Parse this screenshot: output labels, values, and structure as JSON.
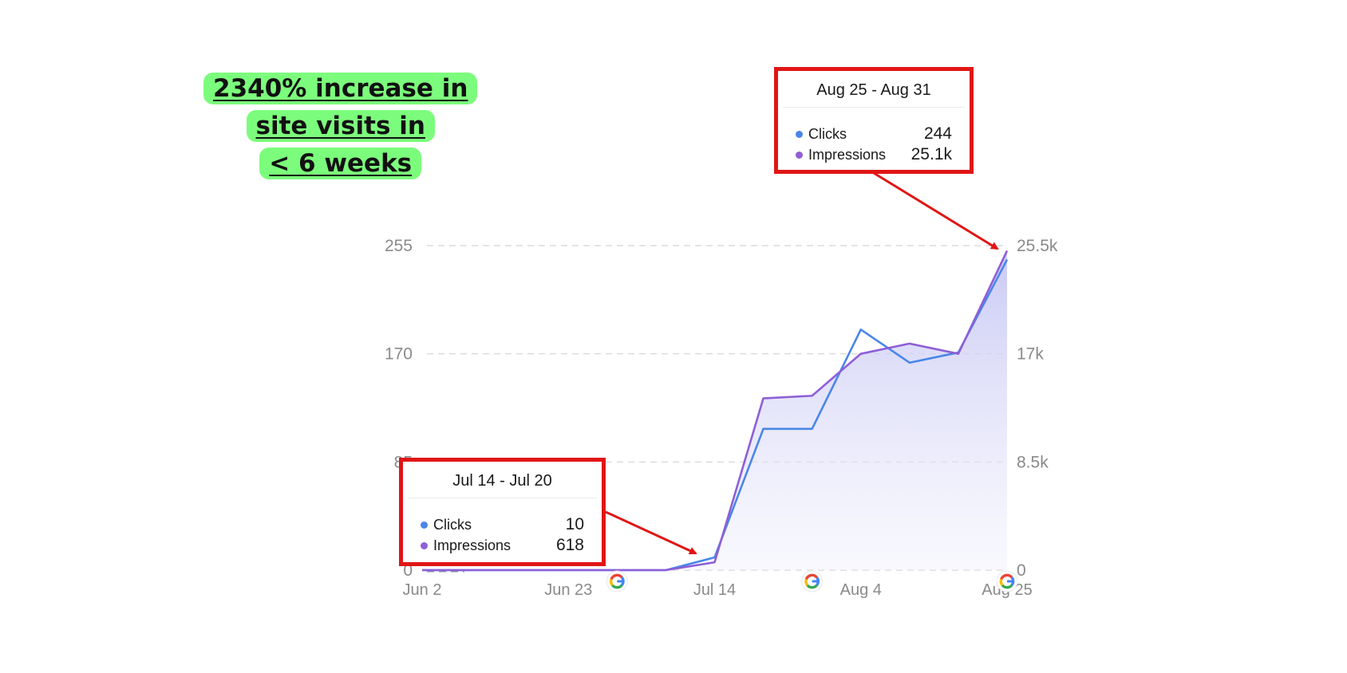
{
  "headline": {
    "lines": [
      "2340% increase in",
      "site visits in",
      "< 6 weeks"
    ],
    "highlight_color": "#7cfc7c"
  },
  "chart_data": {
    "type": "line",
    "x": [
      "Jun 2",
      "Jun 9",
      "Jun 16",
      "Jun 23",
      "Jun 30",
      "Jul 7",
      "Jul 14",
      "Jul 21",
      "Jul 28",
      "Aug 4",
      "Aug 11",
      "Aug 18",
      "Aug 25"
    ],
    "x_ticks": [
      "Jun 2",
      "Jun 23",
      "Jul 14",
      "Aug 4",
      "Aug 25"
    ],
    "series": [
      {
        "name": "Clicks",
        "axis": "left",
        "color": "#4a86e8",
        "values": [
          0,
          0,
          0,
          0,
          0,
          0,
          10,
          111,
          111,
          189,
          163,
          171,
          244
        ]
      },
      {
        "name": "Impressions",
        "axis": "right",
        "color": "#8e5fd6",
        "values": [
          0,
          0,
          0,
          0,
          0,
          0,
          618,
          13500,
          13700,
          17000,
          17800,
          17000,
          25100
        ]
      }
    ],
    "y_left": {
      "ticks": [
        "0",
        "85",
        "170",
        "255"
      ],
      "lim": [
        0,
        255
      ]
    },
    "y_right": {
      "ticks": [
        "0",
        "8.5k",
        "17k",
        "25.5k"
      ],
      "lim": [
        0,
        25500
      ]
    },
    "grid": true,
    "fill_color": "#c8c8f5",
    "update_markers": [
      "Jun 30",
      "Jul 28",
      "Aug 25"
    ]
  },
  "tooltips": [
    {
      "id": "aug",
      "title": "Aug 25 - Aug 31",
      "rows": [
        {
          "label": "Clicks",
          "value": "244",
          "color": "#4a86e8"
        },
        {
          "label": "Impressions",
          "value": "25.1k",
          "color": "#8e5fd6"
        }
      ]
    },
    {
      "id": "jul",
      "title": "Jul 14 - Jul 20",
      "rows": [
        {
          "label": "Clicks",
          "value": "10",
          "color": "#4a86e8"
        },
        {
          "label": "Impressions",
          "value": "618",
          "color": "#8e5fd6"
        }
      ]
    }
  ],
  "annotation_color": "#e01616"
}
